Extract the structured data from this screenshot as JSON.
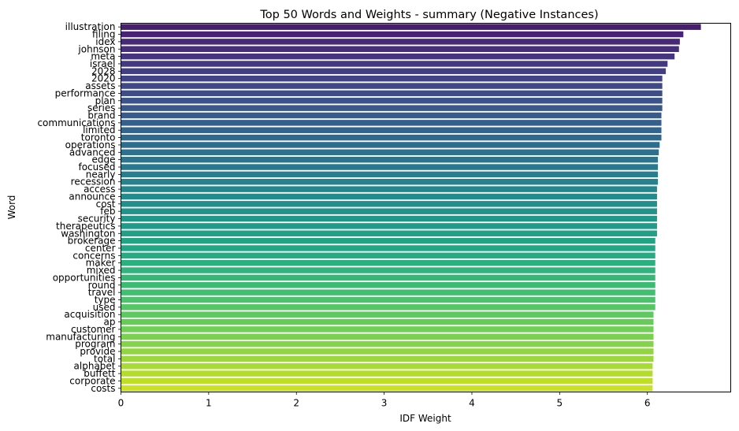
{
  "chart_data": {
    "type": "bar",
    "orientation": "horizontal",
    "title": "Top 50 Words and Weights - summary (Negative Instances)",
    "xlabel": "IDF Weight",
    "ylabel": "Word",
    "xlim": [
      0,
      6.95
    ],
    "xticks": [
      "0",
      "1",
      "2",
      "3",
      "4",
      "5",
      "6"
    ],
    "grid": false,
    "legend": "none",
    "colormap": "viridis",
    "categories": [
      "illustration",
      "filing",
      "idex",
      "johnson",
      "meta",
      "israel",
      "2028",
      "2020",
      "assets",
      "performance",
      "plan",
      "series",
      "brand",
      "communications",
      "limited",
      "toronto",
      "operations",
      "advanced",
      "edge",
      "focused",
      "nearly",
      "recession",
      "access",
      "announce",
      "cost",
      "feb",
      "security",
      "therapeutics",
      "washington",
      "brokerage",
      "center",
      "concerns",
      "maker",
      "mixed",
      "opportunities",
      "round",
      "travel",
      "type",
      "used",
      "acquisition",
      "ap",
      "customer",
      "manufacturing",
      "program",
      "provide",
      "total",
      "alphabet",
      "buffett",
      "corporate",
      "costs"
    ],
    "values": [
      6.61,
      6.41,
      6.37,
      6.36,
      6.31,
      6.23,
      6.21,
      6.17,
      6.17,
      6.17,
      6.17,
      6.17,
      6.16,
      6.16,
      6.16,
      6.16,
      6.14,
      6.13,
      6.12,
      6.12,
      6.12,
      6.12,
      6.11,
      6.11,
      6.11,
      6.11,
      6.11,
      6.11,
      6.11,
      6.09,
      6.09,
      6.09,
      6.09,
      6.09,
      6.09,
      6.09,
      6.09,
      6.09,
      6.09,
      6.07,
      6.07,
      6.07,
      6.07,
      6.07,
      6.07,
      6.07,
      6.06,
      6.06,
      6.06,
      6.06
    ]
  }
}
